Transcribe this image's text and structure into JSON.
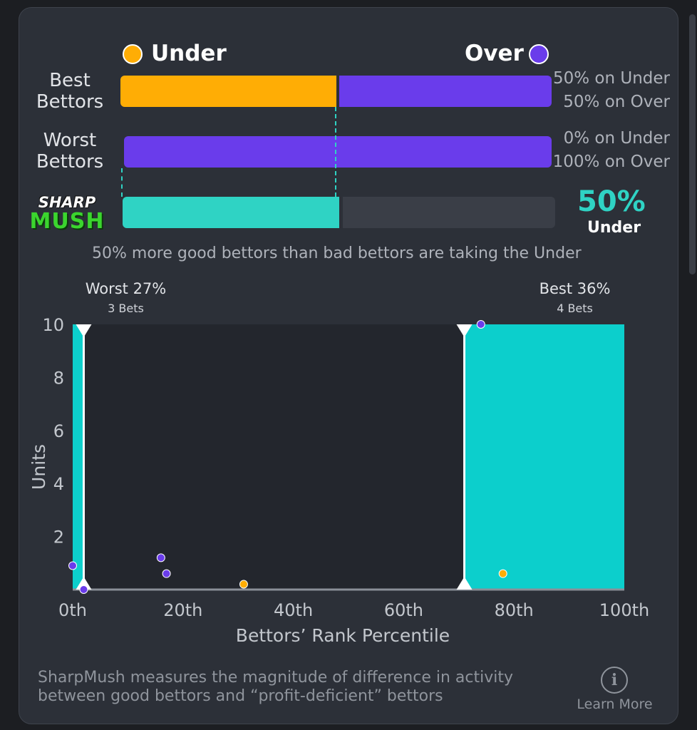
{
  "legend": {
    "under_label": "Under",
    "over_label": "Over",
    "under_color": "#ffad05",
    "over_color": "#6a3ceb"
  },
  "rows": [
    {
      "label_line1": "Best",
      "label_line2": "Bettors",
      "under_pct": 50,
      "over_pct": 50,
      "under_text": "50% on Under",
      "over_text": "50% on Over"
    },
    {
      "label_line1": "Worst",
      "label_line2": "Bettors",
      "under_pct": 0,
      "over_pct": 100,
      "under_text": "0% on Under",
      "over_text": "100% on Over"
    }
  ],
  "sharpmush": {
    "logo_top": "SHARP",
    "logo_bottom": "MUSH",
    "value": 50,
    "big_value": "50%",
    "big_sub": "Under",
    "fill_color": "#2fd3c4"
  },
  "summary_text": "50% more good bettors than bad bettors are taking the Under",
  "chart_data": {
    "type": "area",
    "xlabel": "Bettors’ Rank Percentile",
    "ylabel": "Units",
    "xlim": [
      0,
      100
    ],
    "ylim": [
      0,
      10
    ],
    "x_ticks": [
      "0th",
      "20th",
      "40th",
      "60th",
      "80th",
      "100th"
    ],
    "x_tick_values": [
      0,
      20,
      40,
      60,
      80,
      100
    ],
    "y_ticks": [
      "2",
      "4",
      "6",
      "8",
      "10"
    ],
    "y_tick_values": [
      2,
      4,
      6,
      8,
      10
    ],
    "worst_region": {
      "label": "Worst 27%",
      "sub": "3 Bets",
      "x_start": 0,
      "x_end": 2,
      "height": 10
    },
    "best_region": {
      "label": "Best 36%",
      "sub": "4 Bets",
      "x_start": 71,
      "x_end": 100,
      "height": 10
    },
    "points": [
      {
        "x": 0,
        "y": 0.9,
        "side": "over"
      },
      {
        "x": 2,
        "y": 0,
        "side": "over"
      },
      {
        "x": 16,
        "y": 1.2,
        "side": "over"
      },
      {
        "x": 17,
        "y": 0.6,
        "side": "over"
      },
      {
        "x": 31,
        "y": 0.2,
        "side": "under"
      },
      {
        "x": 74,
        "y": 10,
        "side": "over"
      },
      {
        "x": 78,
        "y": 0.6,
        "side": "under"
      }
    ],
    "area_color": "#0ccfcc"
  },
  "footer": {
    "text_line1": "SharpMush measures the magnitude of difference in activity",
    "text_line2": "between good bettors and “profit-deficient” bettors",
    "learn_more": "Learn More",
    "info_icon": "info-icon"
  }
}
